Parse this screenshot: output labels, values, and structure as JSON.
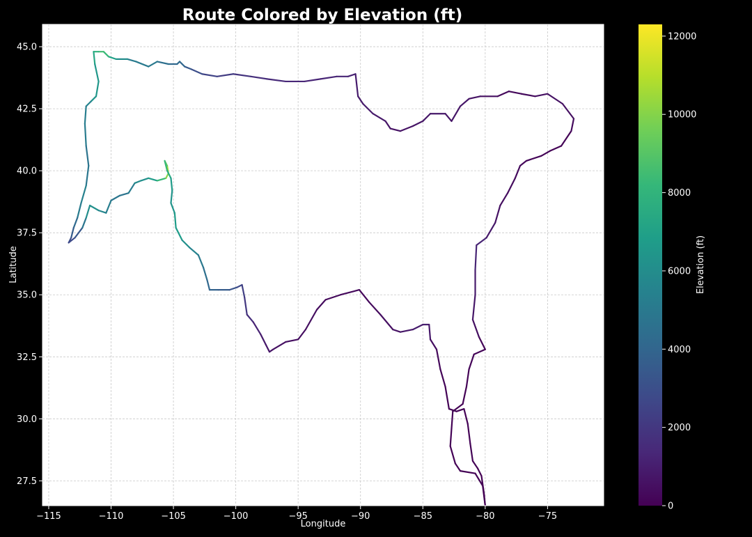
{
  "chart_data": {
    "type": "line",
    "title": "Route Colored by Elevation (ft)",
    "xlabel": "Longitude",
    "ylabel": "Latitude",
    "xlim": [
      -115.5,
      -70.5
    ],
    "ylim": [
      26.5,
      45.9
    ],
    "xticks": [
      -115,
      -110,
      -105,
      -100,
      -95,
      -90,
      -85,
      -80,
      -75
    ],
    "xtick_labels": [
      "−115",
      "−110",
      "−105",
      "−100",
      "−95",
      "−90",
      "−85",
      "−80",
      "−75"
    ],
    "yticks": [
      27.5,
      30.0,
      32.5,
      35.0,
      37.5,
      40.0,
      42.5,
      45.0
    ],
    "ytick_labels": [
      "27.5",
      "30.0",
      "32.5",
      "35.0",
      "37.5",
      "40.0",
      "42.5",
      "45.0"
    ],
    "grid": true,
    "colorbar": {
      "label": "Elevation (ft)",
      "colormap": "viridis",
      "colors": [
        "#440154",
        "#482878",
        "#3e4989",
        "#31688e",
        "#26828e",
        "#1f9e89",
        "#35b779",
        "#6ece58",
        "#b5de2b",
        "#fde725"
      ],
      "range": [
        0,
        12300
      ],
      "ticks": [
        0,
        2000,
        4000,
        6000,
        8000,
        10000,
        12000
      ],
      "tick_labels": [
        "0",
        "2000",
        "4000",
        "6000",
        "8000",
        "10000",
        "12000"
      ]
    },
    "series": [
      {
        "points": [
          [
            -97.3,
            32.7
          ],
          [
            -97.0,
            32.8
          ],
          [
            -96.0,
            33.1
          ],
          [
            -95.0,
            33.2
          ],
          [
            -94.4,
            33.6
          ],
          [
            -93.5,
            34.4
          ],
          [
            -92.8,
            34.8
          ],
          [
            -91.6,
            35.0
          ],
          [
            -90.1,
            35.2
          ],
          [
            -89.3,
            34.7
          ],
          [
            -88.4,
            34.2
          ],
          [
            -87.4,
            33.6
          ],
          [
            -86.8,
            33.5
          ],
          [
            -85.8,
            33.6
          ],
          [
            -85.0,
            33.8
          ],
          [
            -84.5,
            33.8
          ],
          [
            -84.4,
            33.2
          ],
          [
            -83.9,
            32.8
          ],
          [
            -83.6,
            32.0
          ],
          [
            -83.2,
            31.3
          ],
          [
            -82.9,
            30.4
          ],
          [
            -82.3,
            30.3
          ],
          [
            -81.7,
            30.4
          ],
          [
            -81.4,
            29.8
          ],
          [
            -81.2,
            29.0
          ],
          [
            -81.0,
            28.3
          ],
          [
            -80.6,
            28.0
          ],
          [
            -80.3,
            27.7
          ],
          [
            -80.1,
            27.0
          ],
          [
            -80.0,
            26.5
          ],
          [
            -80.2,
            27.3
          ],
          [
            -80.8,
            27.8
          ],
          [
            -82.0,
            27.9
          ],
          [
            -82.4,
            28.2
          ],
          [
            -82.8,
            28.9
          ],
          [
            -82.7,
            29.6
          ],
          [
            -82.6,
            30.3
          ],
          [
            -81.8,
            30.6
          ],
          [
            -81.5,
            31.3
          ],
          [
            -81.3,
            32.0
          ],
          [
            -80.9,
            32.6
          ],
          [
            -80.0,
            32.8
          ],
          [
            -80.5,
            33.3
          ],
          [
            -81.0,
            34.0
          ],
          [
            -80.8,
            35.0
          ],
          [
            -80.8,
            36.0
          ],
          [
            -80.7,
            37.0
          ],
          [
            -79.9,
            37.3
          ],
          [
            -79.2,
            37.9
          ],
          [
            -78.8,
            38.6
          ],
          [
            -78.2,
            39.1
          ],
          [
            -77.6,
            39.7
          ],
          [
            -77.2,
            40.2
          ],
          [
            -76.7,
            40.4
          ],
          [
            -75.5,
            40.6
          ],
          [
            -74.8,
            40.8
          ],
          [
            -73.9,
            41.0
          ],
          [
            -73.1,
            41.6
          ],
          [
            -72.9,
            42.1
          ],
          [
            -73.8,
            42.7
          ],
          [
            -75.0,
            43.1
          ],
          [
            -76.0,
            43.0
          ],
          [
            -77.1,
            43.1
          ],
          [
            -78.1,
            43.2
          ],
          [
            -79.0,
            43.0
          ],
          [
            -80.4,
            43.0
          ],
          [
            -81.3,
            42.9
          ],
          [
            -82.0,
            42.6
          ],
          [
            -82.7,
            42.0
          ],
          [
            -83.2,
            42.3
          ],
          [
            -84.4,
            42.3
          ],
          [
            -85.0,
            42.0
          ],
          [
            -85.8,
            41.8
          ],
          [
            -86.8,
            41.6
          ],
          [
            -87.6,
            41.7
          ],
          [
            -88.0,
            42.0
          ],
          [
            -89.0,
            42.3
          ],
          [
            -89.8,
            42.7
          ],
          [
            -90.2,
            43.0
          ],
          [
            -90.4,
            43.9
          ],
          [
            -91.0,
            43.8
          ],
          [
            -91.9,
            43.8
          ],
          [
            -93.2,
            43.7
          ],
          [
            -94.5,
            43.6
          ],
          [
            -96.0,
            43.6
          ],
          [
            -97.5,
            43.7
          ],
          [
            -98.8,
            43.8
          ],
          [
            -100.2,
            43.9
          ],
          [
            -101.5,
            43.8
          ],
          [
            -102.7,
            43.9
          ],
          [
            -103.6,
            44.1
          ],
          [
            -104.1,
            44.2
          ],
          [
            -104.5,
            44.4
          ],
          [
            -104.7,
            44.3
          ],
          [
            -105.4,
            44.3
          ],
          [
            -106.3,
            44.4
          ],
          [
            -107.0,
            44.2
          ],
          [
            -108.0,
            44.4
          ],
          [
            -108.7,
            44.5
          ],
          [
            -109.6,
            44.5
          ],
          [
            -110.2,
            44.6
          ],
          [
            -110.6,
            44.8
          ],
          [
            -111.0,
            44.8
          ],
          [
            -111.4,
            44.8
          ],
          [
            -111.3,
            44.3
          ],
          [
            -111.0,
            43.6
          ],
          [
            -111.2,
            43.0
          ],
          [
            -111.6,
            42.8
          ],
          [
            -112.0,
            42.6
          ],
          [
            -112.1,
            41.9
          ],
          [
            -112.0,
            41.0
          ],
          [
            -111.8,
            40.2
          ],
          [
            -112.0,
            39.4
          ],
          [
            -112.4,
            38.7
          ],
          [
            -112.7,
            38.1
          ],
          [
            -113.0,
            37.7
          ],
          [
            -113.2,
            37.3
          ],
          [
            -113.4,
            37.1
          ],
          [
            -112.9,
            37.3
          ],
          [
            -112.3,
            37.7
          ],
          [
            -112.0,
            38.1
          ],
          [
            -111.7,
            38.6
          ],
          [
            -111.0,
            38.4
          ],
          [
            -110.4,
            38.3
          ],
          [
            -110.0,
            38.8
          ],
          [
            -109.3,
            39.0
          ],
          [
            -108.6,
            39.1
          ],
          [
            -108.1,
            39.5
          ],
          [
            -107.6,
            39.6
          ],
          [
            -107.0,
            39.7
          ],
          [
            -106.3,
            39.6
          ],
          [
            -105.6,
            39.7
          ],
          [
            -105.4,
            39.9
          ],
          [
            -105.5,
            40.2
          ],
          [
            -105.7,
            40.4
          ],
          [
            -105.5,
            40.0
          ],
          [
            -105.2,
            39.7
          ],
          [
            -105.1,
            39.2
          ],
          [
            -105.2,
            38.7
          ],
          [
            -104.9,
            38.3
          ],
          [
            -104.8,
            37.7
          ],
          [
            -104.3,
            37.2
          ],
          [
            -103.7,
            36.9
          ],
          [
            -103.0,
            36.6
          ],
          [
            -102.6,
            36.1
          ],
          [
            -102.3,
            35.6
          ],
          [
            -102.1,
            35.2
          ],
          [
            -101.4,
            35.2
          ],
          [
            -100.5,
            35.2
          ],
          [
            -99.9,
            35.3
          ],
          [
            -99.5,
            35.4
          ],
          [
            -99.3,
            34.9
          ],
          [
            -99.1,
            34.2
          ],
          [
            -98.6,
            33.9
          ],
          [
            -98.0,
            33.4
          ],
          [
            -97.6,
            33.0
          ],
          [
            -97.3,
            32.7
          ]
        ],
        "elevation": [
          700,
          650,
          500,
          420,
          520,
          480,
          300,
          320,
          250,
          260,
          420,
          560,
          650,
          900,
          1000,
          1000,
          600,
          350,
          200,
          100,
          30,
          30,
          40,
          60,
          80,
          100,
          40,
          20,
          10,
          10,
          20,
          30,
          40,
          60,
          80,
          80,
          50,
          30,
          40,
          100,
          200,
          20,
          300,
          700,
          800,
          1000,
          1500,
          1000,
          700,
          500,
          400,
          350,
          300,
          200,
          100,
          80,
          50,
          100,
          600,
          500,
          700,
          400,
          300,
          250,
          300,
          600,
          700,
          800,
          650,
          800,
          800,
          750,
          650,
          620,
          590,
          750,
          900,
          900,
          800,
          1100,
          1200,
          1300,
          1300,
          1250,
          1400,
          1500,
          1750,
          2000,
          2400,
          2600,
          3300,
          3600,
          4500,
          4000,
          4300,
          4600,
          5400,
          4700,
          5500,
          6500,
          7500,
          9000,
          8000,
          7800,
          6800,
          6200,
          6800,
          6000,
          5000,
          5500,
          4800,
          4700,
          5000,
          5800,
          4500,
          4000,
          3200,
          2700,
          2800,
          4000,
          5600,
          6500,
          5800,
          5500,
          5000,
          4700,
          4800,
          5500,
          6300,
          6000,
          7500,
          9000,
          11000,
          10000,
          8500,
          8000,
          7000,
          6500,
          6200,
          6500,
          7000,
          6500,
          5800,
          5200,
          4800,
          4200,
          4000,
          3800,
          3400,
          3000,
          2500,
          2200,
          1800,
          1400,
          1000,
          800,
          700
        ]
      }
    ]
  }
}
